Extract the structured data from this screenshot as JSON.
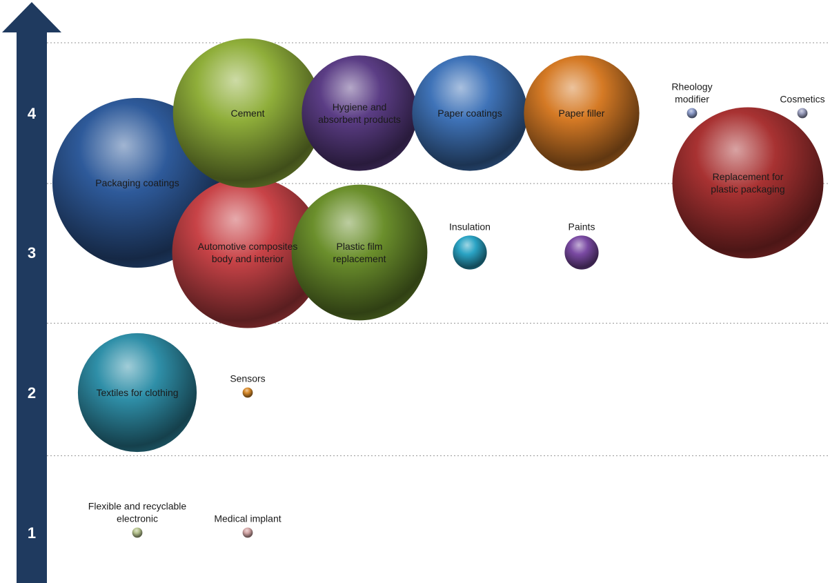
{
  "chart_data": {
    "type": "scatter",
    "title": "",
    "xlabel": "",
    "ylabel": "",
    "ylim": [
      0.5,
      4.5
    ],
    "yticks": [
      {
        "label": "1",
        "value": 1
      },
      {
        "label": "2",
        "value": 2
      },
      {
        "label": "3",
        "value": 3
      },
      {
        "label": "4",
        "value": 4
      }
    ],
    "grid": "dotted horizontal lines between levels",
    "legend": "none",
    "bubbles": [
      {
        "label": "Packaging coatings",
        "level": 3.5,
        "size": 1.0,
        "color": "#2e5a9a"
      },
      {
        "label": "Cement",
        "level": 4,
        "size": 0.88,
        "color": "#8fae3a"
      },
      {
        "label": "Hygiene and absorbent products",
        "level": 4,
        "size": 0.68,
        "color": "#5b3d85"
      },
      {
        "label": "Paper coatings",
        "level": 4,
        "size": 0.68,
        "color": "#3f73b8"
      },
      {
        "label": "Paper filler",
        "level": 4,
        "size": 0.68,
        "color": "#d57a25"
      },
      {
        "label": "Rheology modifier",
        "level": 4,
        "size": 0.06,
        "color": "#8c9bc9"
      },
      {
        "label": "Cosmetics",
        "level": 4,
        "size": 0.06,
        "color": "#9b9fbf"
      },
      {
        "label": "Replacement for plastic packaging",
        "level": 3.5,
        "size": 0.89,
        "color": "#a83232"
      },
      {
        "label": "Automotive composites body and interior",
        "level": 3,
        "size": 0.89,
        "color": "#c84347"
      },
      {
        "label": "Plastic film replacement",
        "level": 3,
        "size": 0.8,
        "color": "#6b8f2c"
      },
      {
        "label": "Insulation",
        "level": 3,
        "size": 0.2,
        "color": "#2aa3c4"
      },
      {
        "label": "Paints",
        "level": 3,
        "size": 0.2,
        "color": "#7a4aa3"
      },
      {
        "label": "Textiles for clothing",
        "level": 2,
        "size": 0.7,
        "color": "#2f8fa8"
      },
      {
        "label": "Sensors",
        "level": 2,
        "size": 0.06,
        "color": "#d98b2b"
      },
      {
        "label": "Flexible and recyclable electronic",
        "level": 1,
        "size": 0.06,
        "color": "#b7c48f"
      },
      {
        "label": "Medical implant",
        "level": 1,
        "size": 0.06,
        "color": "#d4a7a7"
      }
    ],
    "colors": {
      "axis_arrow": "#1f3a5f",
      "grid": "#a6a6a6",
      "tick_text": "#ffffff",
      "label_text": "#1a1a1a"
    }
  }
}
